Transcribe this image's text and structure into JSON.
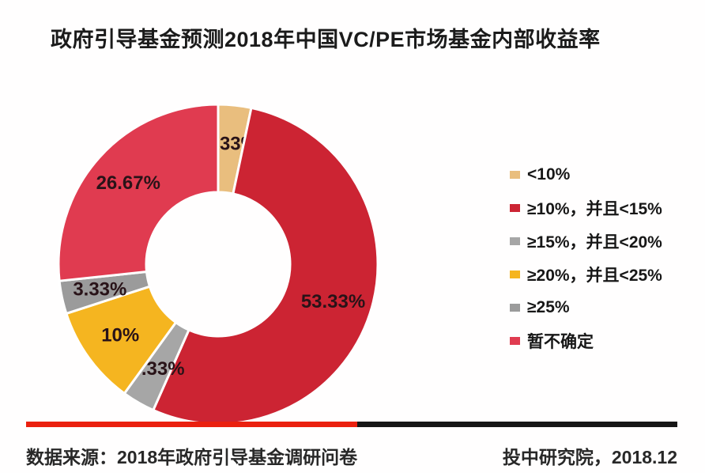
{
  "title": "政府引导基金预测2018年中国VC/PE市场基金内部收益率",
  "chart_data": {
    "type": "pie",
    "subtype": "donut",
    "title": "政府引导基金预测2018年中国VC/PE市场基金内部收益率",
    "unit": "%",
    "start_angle_deg": 0,
    "direction": "clockwise",
    "legend_position": "right",
    "donut_hole_ratio": 0.45,
    "slices": [
      {
        "label": "<10%",
        "value": 3.33,
        "display": "3.33%",
        "color": "#E9BE7E"
      },
      {
        "label": "≥10%，并且<15%",
        "value": 53.33,
        "display": "53.33%",
        "color": "#CC2433"
      },
      {
        "label": "≥15%，并且<20%",
        "value": 3.33,
        "display": "3.33%",
        "color": "#A6A6A6"
      },
      {
        "label": "≥20%，并且<25%",
        "value": 10,
        "display": "10%",
        "color": "#F5B520"
      },
      {
        "label": "≥25%",
        "value": 3.33,
        "display": "3.33%",
        "color": "#9B9B9B"
      },
      {
        "label": "暂不确定",
        "value": 26.67,
        "display": "26.67%",
        "color": "#E03B50"
      }
    ],
    "label_text_color": "#291318",
    "slice_gap_color": "#FFFFFF"
  },
  "divider": {
    "left_color": "#EA200F",
    "right_color": "#161616"
  },
  "footer": {
    "source": "数据来源：2018年政府引导基金调研问卷",
    "attribution": "投中研究院，2018.12"
  }
}
